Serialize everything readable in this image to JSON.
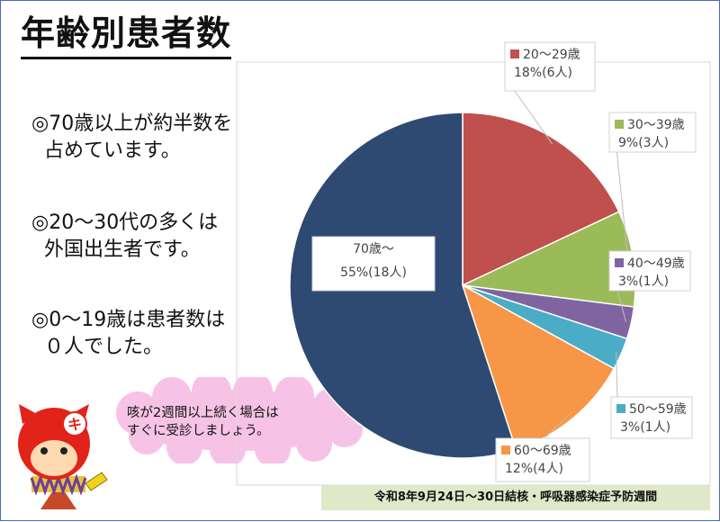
{
  "title": "年齢別患者数",
  "bullets": [
    {
      "line1": "◎70歳以上が約半数を",
      "line2": "  占めています。"
    },
    {
      "line1": "◎20～30代の多くは",
      "line2": "  外国出生者です。"
    },
    {
      "line1": "◎0～19歳は患者数は",
      "line2": "  ０人でした。"
    }
  ],
  "callout": {
    "line1": "咳が2週間以上続く場合は",
    "line2": "すぐに受診しましょう。"
  },
  "footer": "令和8年9月24日～30日結核・呼吸器感染症予防週間",
  "mascot": {
    "badge": "キ"
  },
  "chart_data": {
    "type": "pie",
    "start_angle_deg": 0,
    "direction": "clockwise",
    "slices": [
      {
        "label": "20～29歳",
        "value": 18,
        "count_label": "18%(6人)",
        "color": "#c0504d"
      },
      {
        "label": "30～39歳",
        "value": 9,
        "count_label": "9%(3人)",
        "color": "#9bbb59"
      },
      {
        "label": "40～49歳",
        "value": 3,
        "count_label": "3%(1人)",
        "color": "#8064a2"
      },
      {
        "label": "50～59歳",
        "value": 3,
        "count_label": "3%(1人)",
        "color": "#4bacc6"
      },
      {
        "label": "60～69歳",
        "value": 12,
        "count_label": "12%(4人)",
        "color": "#f79646"
      },
      {
        "label": "70歳～",
        "value": 55,
        "count_label": "55%(18人)",
        "color": "#2e4a72"
      }
    ]
  }
}
